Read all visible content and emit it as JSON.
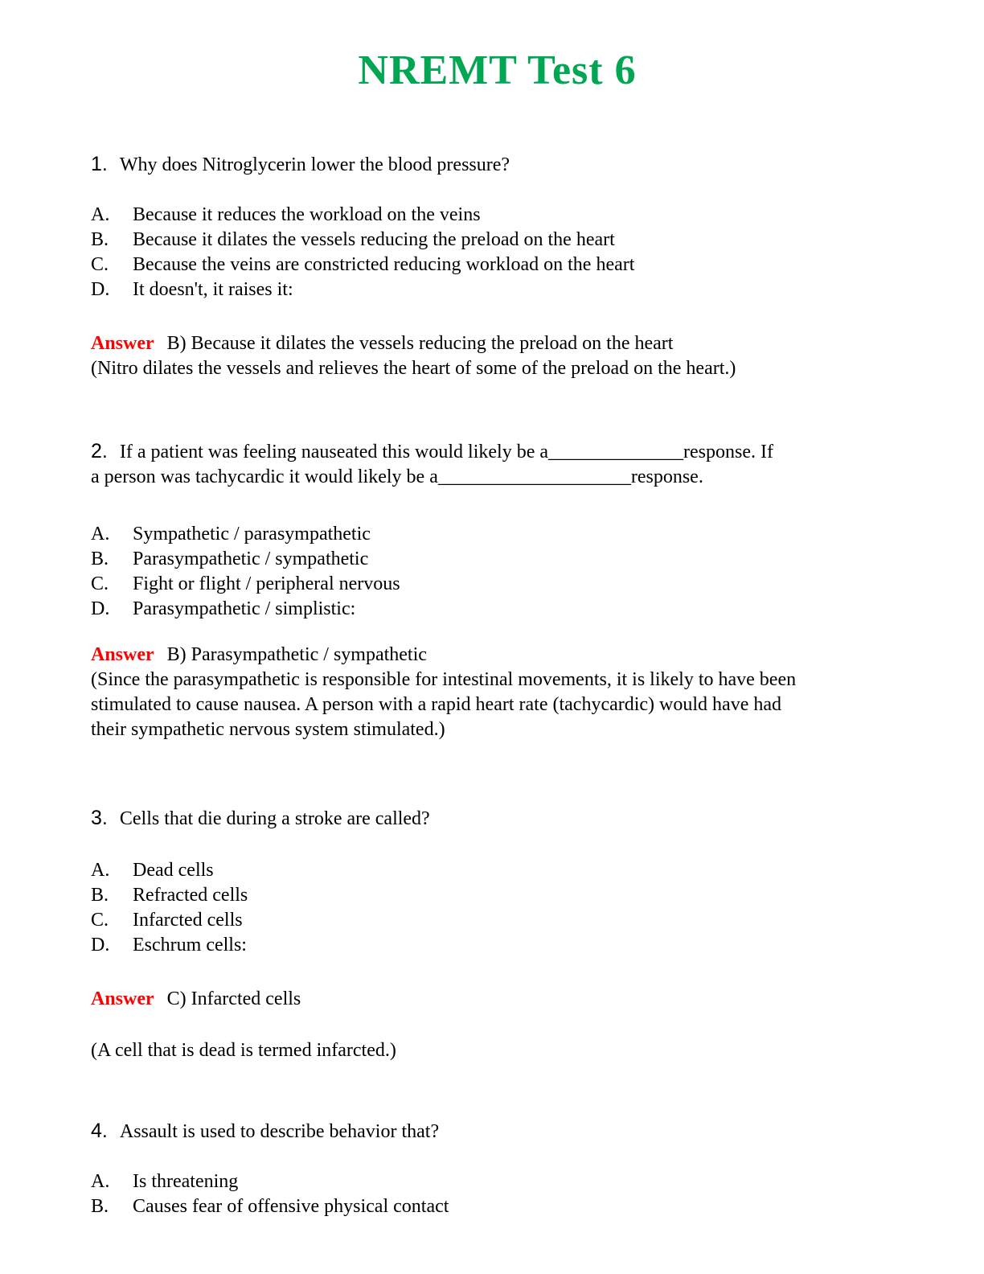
{
  "page": {
    "title": "NREMT Test 6",
    "title_color": "#00A651",
    "answer_color": "#FF0000"
  },
  "questions": [
    {
      "number": "1.",
      "text": "Why does Nitroglycerin lower the blood pressure?",
      "options": [
        {
          "letter": "A.",
          "text": "Because it reduces the workload on the veins"
        },
        {
          "letter": "B.",
          "text": "Because it dilates the vessels reducing the preload on the heart"
        },
        {
          "letter": "C.",
          "text": "Because the veins are constricted reducing workload on the heart"
        },
        {
          "letter": "D.",
          "text": "It doesn't, it raises it:"
        }
      ],
      "answer_label": "Answer",
      "answer": "B) Because it dilates the vessels reducing the preload on the heart",
      "explanation": "(Nitro dilates the vessels and relieves the heart of some of the preload on the heart.)"
    },
    {
      "number": "2.",
      "text": "If a patient was feeling nauseated this would likely be a______________response. If\na person was tachycardic it would likely be a____________________response.",
      "options": [
        {
          "letter": "A.",
          "text": "Sympathetic / parasympathetic"
        },
        {
          "letter": "B.",
          "text": "Parasympathetic / sympathetic"
        },
        {
          "letter": "C.",
          "text": "Fight or flight / peripheral nervous"
        },
        {
          "letter": "D.",
          "text": "Parasympathetic / simplistic:"
        }
      ],
      "answer_label": "Answer",
      "answer": "B) Parasympathetic / sympathetic",
      "explanation": "(Since the parasympathetic is responsible for intestinal movements, it is likely to have been\nstimulated to cause nausea. A person with a rapid heart rate (tachycardic) would have had\ntheir sympathetic nervous system stimulated.)"
    },
    {
      "number": "3.",
      "text": "Cells that die during a stroke are called?",
      "options": [
        {
          "letter": "A.",
          "text": "Dead cells"
        },
        {
          "letter": "B.",
          "text": "Refracted cells"
        },
        {
          "letter": "C.",
          "text": "Infarcted cells"
        },
        {
          "letter": "D.",
          "text": "Eschrum cells:"
        }
      ],
      "answer_label": "Answer",
      "answer": "C) Infarcted cells",
      "explanation": "(A cell that is dead is termed infarcted.)"
    },
    {
      "number": "4.",
      "text": "Assault is used to describe behavior that?",
      "options": [
        {
          "letter": "A.",
          "text": "Is threatening"
        },
        {
          "letter": "B.",
          "text": "Causes fear of offensive physical contact"
        }
      ]
    }
  ]
}
